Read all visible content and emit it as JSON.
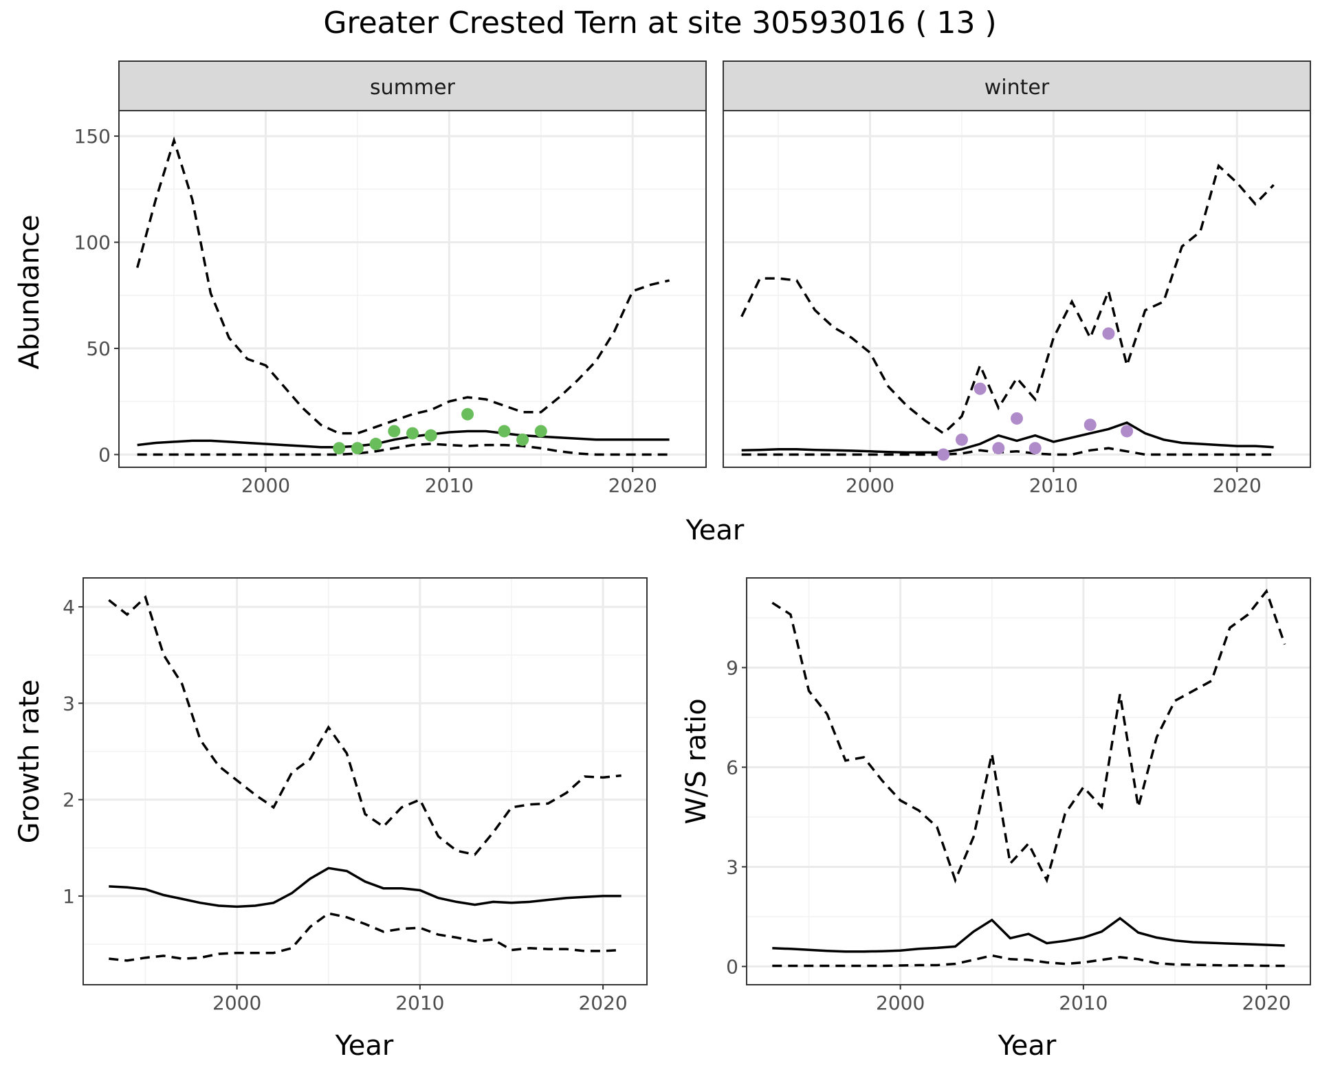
{
  "title": "Greater Crested Tern at site 30593016 ( 13 )",
  "chart_data": [
    {
      "type": "line",
      "panel": "summer",
      "xlabel": "Year",
      "ylabel": "Abundance",
      "xlim": [
        1992,
        2024
      ],
      "ylim": [
        -6,
        162
      ],
      "xticks": [
        2000,
        2010,
        2020
      ],
      "yticks": [
        0,
        50,
        100,
        150
      ],
      "grid": true,
      "series": [
        {
          "role": "estimate",
          "style": "solid",
          "x": [
            1993,
            1994,
            1995,
            1996,
            1997,
            1998,
            1999,
            2000,
            2001,
            2002,
            2003,
            2004,
            2005,
            2006,
            2007,
            2008,
            2009,
            2010,
            2011,
            2012,
            2013,
            2014,
            2015,
            2016,
            2017,
            2018,
            2019,
            2020,
            2021,
            2022
          ],
          "y": [
            4.5,
            5.5,
            6,
            6.5,
            6.5,
            6,
            5.5,
            5,
            4.5,
            4,
            3.5,
            3.5,
            4,
            5,
            7,
            8.5,
            9.5,
            10.5,
            11,
            11,
            10,
            9,
            8.5,
            8,
            7.5,
            7,
            7,
            7,
            7,
            7
          ]
        },
        {
          "role": "upper",
          "style": "dashed",
          "x": [
            1993,
            1994,
            1995,
            1996,
            1997,
            1998,
            1999,
            2000,
            2001,
            2002,
            2003,
            2004,
            2005,
            2006,
            2007,
            2008,
            2009,
            2010,
            2011,
            2012,
            2013,
            2014,
            2015,
            2016,
            2017,
            2018,
            2019,
            2020,
            2021,
            2022
          ],
          "y": [
            88,
            120,
            148,
            120,
            76,
            55,
            45,
            42,
            32,
            22,
            14,
            10,
            10,
            13,
            16,
            19,
            21,
            25,
            27,
            26,
            23,
            20,
            20,
            27,
            35,
            44,
            58,
            77,
            80,
            82
          ]
        },
        {
          "role": "lower",
          "style": "dashed",
          "x": [
            1993,
            1994,
            1995,
            1996,
            1997,
            1998,
            1999,
            2000,
            2001,
            2002,
            2003,
            2004,
            2005,
            2006,
            2007,
            2008,
            2009,
            2010,
            2011,
            2012,
            2013,
            2014,
            2015,
            2016,
            2017,
            2018,
            2019,
            2020,
            2021,
            2022
          ],
          "y": [
            0,
            0,
            0,
            0,
            0,
            0,
            0,
            0,
            0,
            0,
            0,
            0,
            0.5,
            1.5,
            3,
            4.5,
            5,
            4.5,
            4,
            4.5,
            4.5,
            4,
            3,
            1.5,
            0.5,
            0,
            0,
            0,
            0,
            0
          ]
        }
      ],
      "points": {
        "color": "#6abd5b",
        "x": [
          2004,
          2005,
          2006,
          2007,
          2008,
          2009,
          2011,
          2013,
          2014,
          2015
        ],
        "y": [
          3,
          3,
          5,
          11,
          10,
          9,
          19,
          11,
          7,
          11
        ]
      }
    },
    {
      "type": "line",
      "panel": "winter",
      "xlabel": "Year",
      "ylabel": "",
      "xlim": [
        1992,
        2024
      ],
      "ylim": [
        -6,
        162
      ],
      "xticks": [
        2000,
        2010,
        2020
      ],
      "yticks": [
        0,
        50,
        100,
        150
      ],
      "grid": true,
      "series": [
        {
          "role": "estimate",
          "style": "solid",
          "x": [
            1993,
            1994,
            1995,
            1996,
            1997,
            1998,
            1999,
            2000,
            2001,
            2002,
            2003,
            2004,
            2005,
            2006,
            2007,
            2008,
            2009,
            2010,
            2011,
            2012,
            2013,
            2014,
            2015,
            2016,
            2017,
            2018,
            2019,
            2020,
            2021,
            2022
          ],
          "y": [
            2,
            2.2,
            2.5,
            2.5,
            2.2,
            2,
            1.8,
            1.5,
            1.2,
            1,
            1,
            1,
            2.5,
            5,
            9,
            6.5,
            9,
            6,
            8,
            10,
            12,
            15,
            10,
            7,
            5.5,
            5,
            4.5,
            4,
            4,
            3.5
          ]
        },
        {
          "role": "upper",
          "style": "dashed",
          "x": [
            1993,
            1994,
            1995,
            1996,
            1997,
            1998,
            1999,
            2000,
            2001,
            2002,
            2003,
            2004,
            2005,
            2006,
            2007,
            2008,
            2009,
            2010,
            2011,
            2012,
            2013,
            2014,
            2015,
            2016,
            2017,
            2018,
            2019,
            2020,
            2021,
            2022
          ],
          "y": [
            65,
            83,
            83,
            82,
            68,
            60,
            55,
            48,
            32,
            23,
            16,
            10,
            18,
            42,
            22,
            36,
            26,
            55,
            72,
            55,
            77,
            42,
            68,
            72,
            98,
            105,
            136,
            128,
            118,
            127
          ]
        },
        {
          "role": "lower",
          "style": "dashed",
          "x": [
            1993,
            1994,
            1995,
            1996,
            1997,
            1998,
            1999,
            2000,
            2001,
            2002,
            2003,
            2004,
            2005,
            2006,
            2007,
            2008,
            2009,
            2010,
            2011,
            2012,
            2013,
            2014,
            2015,
            2016,
            2017,
            2018,
            2019,
            2020,
            2021,
            2022
          ],
          "y": [
            0,
            0,
            0,
            0,
            0,
            0,
            0,
            0,
            0,
            0,
            0,
            0,
            0.5,
            2,
            1,
            1.5,
            0.5,
            0,
            0,
            2,
            3,
            1.5,
            0,
            0,
            0,
            0,
            0,
            0,
            0,
            0
          ]
        }
      ],
      "points": {
        "color": "#b08bca",
        "x": [
          2004,
          2005,
          2006,
          2007,
          2008,
          2009,
          2012,
          2013,
          2014
        ],
        "y": [
          0,
          7,
          31,
          3,
          17,
          3,
          14,
          57,
          11
        ]
      }
    },
    {
      "type": "line",
      "panel": "growth",
      "xlabel": "Year",
      "ylabel": "Growth rate",
      "xlim": [
        1991.6,
        2022.4
      ],
      "ylim": [
        0.08,
        4.3
      ],
      "xticks": [
        2000,
        2010,
        2020
      ],
      "yticks": [
        1,
        2,
        3,
        4
      ],
      "grid": true,
      "series": [
        {
          "role": "estimate",
          "style": "solid",
          "x": [
            1993,
            1994,
            1995,
            1996,
            1997,
            1998,
            1999,
            2000,
            2001,
            2002,
            2003,
            2004,
            2005,
            2006,
            2007,
            2008,
            2009,
            2010,
            2011,
            2012,
            2013,
            2014,
            2015,
            2016,
            2017,
            2018,
            2019,
            2020,
            2021
          ],
          "y": [
            1.1,
            1.09,
            1.07,
            1.01,
            0.97,
            0.93,
            0.9,
            0.89,
            0.9,
            0.93,
            1.03,
            1.18,
            1.29,
            1.26,
            1.15,
            1.08,
            1.08,
            1.06,
            0.98,
            0.94,
            0.91,
            0.94,
            0.93,
            0.94,
            0.96,
            0.98,
            0.99,
            1.0,
            1.0
          ]
        },
        {
          "role": "upper",
          "style": "dashed",
          "x": [
            1993,
            1994,
            1995,
            1996,
            1997,
            1998,
            1999,
            2000,
            2001,
            2002,
            2003,
            2004,
            2005,
            2006,
            2007,
            2008,
            2009,
            2010,
            2011,
            2012,
            2013,
            2014,
            2015,
            2016,
            2017,
            2018,
            2019,
            2020,
            2021
          ],
          "y": [
            4.07,
            3.92,
            4.1,
            3.5,
            3.2,
            2.62,
            2.35,
            2.2,
            2.05,
            1.92,
            2.28,
            2.42,
            2.75,
            2.48,
            1.85,
            1.72,
            1.92,
            2.0,
            1.62,
            1.47,
            1.43,
            1.66,
            1.92,
            1.95,
            1.96,
            2.07,
            2.24,
            2.23,
            2.25
          ]
        },
        {
          "role": "lower",
          "style": "dashed",
          "x": [
            1993,
            1994,
            1995,
            1996,
            1997,
            1998,
            1999,
            2000,
            2001,
            2002,
            2003,
            2004,
            2005,
            2006,
            2007,
            2008,
            2009,
            2010,
            2011,
            2012,
            2013,
            2014,
            2015,
            2016,
            2017,
            2018,
            2019,
            2020,
            2021
          ],
          "y": [
            0.35,
            0.33,
            0.36,
            0.38,
            0.35,
            0.36,
            0.4,
            0.41,
            0.41,
            0.41,
            0.46,
            0.68,
            0.82,
            0.78,
            0.71,
            0.63,
            0.66,
            0.67,
            0.6,
            0.57,
            0.53,
            0.55,
            0.44,
            0.46,
            0.45,
            0.45,
            0.43,
            0.43,
            0.44
          ]
        }
      ]
    },
    {
      "type": "line",
      "panel": "ratio",
      "xlabel": "Year",
      "ylabel": "W/S ratio",
      "xlim": [
        1991.6,
        2022.4
      ],
      "ylim": [
        -0.55,
        11.7
      ],
      "xticks": [
        2000,
        2010,
        2020
      ],
      "yticks": [
        0,
        3,
        6,
        9
      ],
      "grid": true,
      "series": [
        {
          "role": "estimate",
          "style": "solid",
          "x": [
            1993,
            1994,
            1995,
            1996,
            1997,
            1998,
            1999,
            2000,
            2001,
            2002,
            2003,
            2004,
            2005,
            2006,
            2007,
            2008,
            2009,
            2010,
            2011,
            2012,
            2013,
            2014,
            2015,
            2016,
            2017,
            2018,
            2019,
            2020,
            2021
          ],
          "y": [
            0.55,
            0.53,
            0.5,
            0.47,
            0.45,
            0.45,
            0.46,
            0.48,
            0.53,
            0.56,
            0.6,
            1.05,
            1.4,
            0.85,
            0.98,
            0.7,
            0.77,
            0.87,
            1.05,
            1.45,
            1.02,
            0.87,
            0.78,
            0.73,
            0.71,
            0.69,
            0.67,
            0.65,
            0.63
          ]
        },
        {
          "role": "upper",
          "style": "dashed",
          "x": [
            1993,
            1994,
            1995,
            1996,
            1997,
            1998,
            1999,
            2000,
            2001,
            2002,
            2003,
            2004,
            2005,
            2006,
            2007,
            2008,
            2009,
            2010,
            2011,
            2012,
            2013,
            2014,
            2015,
            2016,
            2017,
            2018,
            2019,
            2020,
            2021
          ],
          "y": [
            10.95,
            10.6,
            8.3,
            7.6,
            6.2,
            6.3,
            5.6,
            5.0,
            4.7,
            4.2,
            2.6,
            3.9,
            6.4,
            3.1,
            3.7,
            2.6,
            4.6,
            5.4,
            4.8,
            8.2,
            4.8,
            6.9,
            8.0,
            8.3,
            8.6,
            10.2,
            10.6,
            11.3,
            9.7
          ]
        },
        {
          "role": "lower",
          "style": "dashed",
          "x": [
            1993,
            1994,
            1995,
            1996,
            1997,
            1998,
            1999,
            2000,
            2001,
            2002,
            2003,
            2004,
            2005,
            2006,
            2007,
            2008,
            2009,
            2010,
            2011,
            2012,
            2013,
            2014,
            2015,
            2016,
            2017,
            2018,
            2019,
            2020,
            2021
          ],
          "y": [
            0.02,
            0.02,
            0.02,
            0.02,
            0.02,
            0.02,
            0.02,
            0.03,
            0.04,
            0.04,
            0.08,
            0.2,
            0.33,
            0.22,
            0.2,
            0.12,
            0.08,
            0.12,
            0.2,
            0.28,
            0.22,
            0.1,
            0.06,
            0.05,
            0.04,
            0.03,
            0.03,
            0.02,
            0.02
          ]
        }
      ]
    }
  ]
}
